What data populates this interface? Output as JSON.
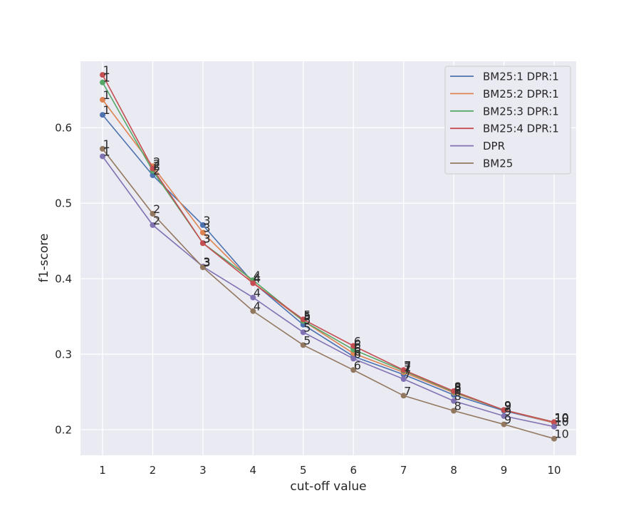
{
  "chart_data": {
    "type": "line",
    "title": "",
    "xlabel": "cut-off value",
    "ylabel": "f1-score",
    "x": [
      1,
      2,
      3,
      4,
      5,
      6,
      7,
      8,
      9,
      10
    ],
    "xticks": [
      "1",
      "2",
      "3",
      "4",
      "5",
      "6",
      "7",
      "8",
      "9",
      "10"
    ],
    "yticks": [
      "0.2",
      "0.3",
      "0.4",
      "0.5",
      "0.6"
    ],
    "ytick_values": [
      0.2,
      0.3,
      0.4,
      0.5,
      0.6
    ],
    "xlim": [
      0.56,
      10.44
    ],
    "ylim": [
      0.166,
      0.688
    ],
    "grid": true,
    "legend_position": "top-right",
    "point_labels": [
      "1",
      "2",
      "3",
      "4",
      "5",
      "6",
      "7",
      "8",
      "9",
      "10"
    ],
    "series": [
      {
        "name": "BM25:1 DPR:1",
        "color": "#4c72b0",
        "values": [
          0.617,
          0.537,
          0.471,
          0.395,
          0.339,
          0.297,
          0.273,
          0.246,
          0.225,
          0.209
        ]
      },
      {
        "name": "BM25:2 DPR:1",
        "color": "#dd8452",
        "values": [
          0.637,
          0.549,
          0.461,
          0.395,
          0.344,
          0.301,
          0.276,
          0.249,
          0.226,
          0.209
        ]
      },
      {
        "name": "BM25:3 DPR:1",
        "color": "#55a868",
        "values": [
          0.66,
          0.543,
          0.447,
          0.398,
          0.344,
          0.306,
          0.278,
          0.25,
          0.226,
          0.21
        ]
      },
      {
        "name": "BM25:4 DPR:1",
        "color": "#c44e52",
        "values": [
          0.67,
          0.546,
          0.447,
          0.394,
          0.346,
          0.311,
          0.279,
          0.251,
          0.226,
          0.21
        ]
      },
      {
        "name": "DPR",
        "color": "#8172b3",
        "values": [
          0.562,
          0.471,
          0.416,
          0.375,
          0.329,
          0.294,
          0.267,
          0.238,
          0.218,
          0.204
        ]
      },
      {
        "name": "BM25",
        "color": "#937860",
        "values": [
          0.572,
          0.486,
          0.415,
          0.357,
          0.312,
          0.279,
          0.245,
          0.225,
          0.207,
          0.188
        ]
      }
    ]
  }
}
